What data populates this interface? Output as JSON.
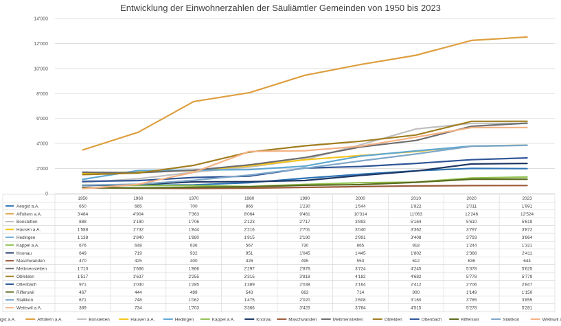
{
  "chart_data": {
    "type": "line",
    "title": "Entwicklung der Einwohnerzahlen der Säuliämtler Gemeinden von 1950 bis 2023",
    "x": [
      "1950",
      "1960",
      "1970",
      "1980",
      "1990",
      "2000",
      "2010",
      "2020",
      "2023"
    ],
    "y_ticks": [
      "0",
      "2'000",
      "4'000",
      "6'000",
      "8'000",
      "10'000",
      "12'000",
      "14'000"
    ],
    "ylim": [
      0,
      14000
    ],
    "grid": true,
    "legend_position": "bottom",
    "series": [
      {
        "name": "Aeugst a.A.",
        "color": "#2e75b6",
        "values": [
          650,
          665,
          700,
          866,
          1230,
          1544,
          1822,
          2011,
          1991
        ],
        "labels": [
          "650",
          "665",
          "700",
          "866",
          "1'230",
          "1'544",
          "1'822",
          "2'011",
          "1'991"
        ]
      },
      {
        "name": "Affoltern a.A.",
        "color": "#dd9f3f",
        "values": [
          3484,
          4904,
          7363,
          8064,
          9461,
          10314,
          11063,
          12246,
          12524
        ],
        "labels": [
          "3'484",
          "4'904",
          "7'363",
          "8'064",
          "9'461",
          "10'314",
          "11'063",
          "12'246",
          "12'524"
        ]
      },
      {
        "name": "Bonstetten",
        "color": "#bfbfbf",
        "values": [
          888,
          1180,
          1706,
          2123,
          2717,
          3893,
          5164,
          5610,
          5619
        ],
        "labels": [
          "888",
          "1'180",
          "1'706",
          "2'123",
          "2'717",
          "3'893",
          "5'164",
          "5'610",
          "5'619"
        ]
      },
      {
        "name": "Hausen a.A.",
        "color": "#f5c518",
        "values": [
          1588,
          1732,
          1844,
          2216,
          2701,
          3040,
          3362,
          3797,
          3872
        ],
        "labels": [
          "1'588",
          "1'732",
          "1'844",
          "2'216",
          "2'701",
          "3'040",
          "3'362",
          "3'797",
          "3'872"
        ]
      },
      {
        "name": "Hedingen",
        "color": "#5fa8d3",
        "values": [
          1138,
          1840,
          1880,
          1915,
          2190,
          2991,
          3408,
          3793,
          3864
        ],
        "labels": [
          "1'138",
          "1'840",
          "1'880",
          "1'915",
          "2'190",
          "2'991",
          "3'408",
          "3'793",
          "3'864"
        ]
      },
      {
        "name": "Kappel a.A.",
        "color": "#92c353",
        "values": [
          676,
          648,
          636,
          567,
          730,
          865,
          918,
          1244,
          1321
        ],
        "labels": [
          "676",
          "648",
          "636",
          "567",
          "730",
          "865",
          "918",
          "1'244",
          "1'321"
        ]
      },
      {
        "name": "Knonau",
        "color": "#203864",
        "values": [
          649,
          719,
          932,
          951,
          1045,
          1445,
          1802,
          2368,
          2411
        ],
        "labels": [
          "649",
          "719",
          "932",
          "951",
          "1'045",
          "1'445",
          "1'802",
          "2'368",
          "2'411"
        ]
      },
      {
        "name": "Maschwanden",
        "color": "#9c5b3c",
        "values": [
          470,
          425,
          400,
          426,
          495,
          553,
          612,
          636,
          644
        ],
        "labels": [
          "470",
          "425",
          "400",
          "426",
          "495",
          "553",
          "612",
          "636",
          "644"
        ]
      },
      {
        "name": "Mettmenstetten",
        "color": "#6e6e6e",
        "values": [
          1710,
          1666,
          1866,
          2297,
          2876,
          3724,
          4245,
          5378,
          5625
        ],
        "labels": [
          "1'710",
          "1'666",
          "1'866",
          "2'297",
          "2'876",
          "3'724",
          "4'245",
          "5'378",
          "5'625"
        ]
      },
      {
        "name": "Obfelden",
        "color": "#a07d1f",
        "values": [
          1517,
          1637,
          2255,
          3315,
          3818,
          4182,
          4682,
          5778,
          5779
        ],
        "labels": [
          "1'517",
          "1'637",
          "2'255",
          "3'315",
          "3'818",
          "4'182",
          "4'682",
          "5'778",
          "5'779"
        ]
      },
      {
        "name": "Ottenbach",
        "color": "#2f5597",
        "values": [
          971,
          1040,
          1285,
          1389,
          2038,
          2164,
          2412,
          2706,
          2847
        ],
        "labels": [
          "971",
          "1'040",
          "1'285",
          "1'389",
          "2'038",
          "2'164",
          "2'412",
          "2'706",
          "2'847"
        ]
      },
      {
        "name": "Rifferswil",
        "color": "#5a6b1f",
        "values": [
          467,
          444,
          499,
          543,
          663,
          714,
          900,
          1149,
          1150
        ],
        "labels": [
          "467",
          "444",
          "499",
          "543",
          "663",
          "714",
          "900",
          "1'149",
          "1'150"
        ]
      },
      {
        "name": "Stallikon",
        "color": "#7fa7c9",
        "values": [
          671,
          748,
          1062,
          1475,
          2020,
          2608,
          3160,
          3785,
          3855
        ],
        "labels": [
          "671",
          "748",
          "1'062",
          "1'475",
          "2'020",
          "2'608",
          "3'160",
          "3'785",
          "3'855"
        ]
      },
      {
        "name": "Wettswil a.A.",
        "color": "#f4b183",
        "values": [
          389,
          734,
          1703,
          3366,
          3425,
          3784,
          4515,
          5278,
          5281
        ],
        "labels": [
          "389",
          "734",
          "1'703",
          "3'366",
          "3'425",
          "3'784",
          "4'515",
          "5'278",
          "5'281"
        ]
      }
    ]
  }
}
